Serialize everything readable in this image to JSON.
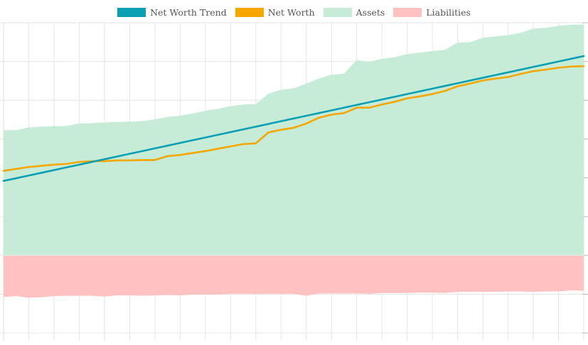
{
  "chart_data": {
    "type": "area",
    "title": "",
    "xlabel": "",
    "ylabel": "",
    "legend_position": "top-center",
    "grid": true,
    "x": [
      0,
      1,
      2,
      3,
      4,
      5,
      6,
      7,
      8,
      9,
      10,
      11,
      12,
      13,
      14,
      15,
      16,
      17,
      18,
      19,
      20,
      21,
      22,
      23,
      24,
      25,
      26,
      27,
      28,
      29,
      30,
      31,
      32,
      33,
      34,
      35,
      36,
      37,
      38,
      39,
      40,
      41,
      42,
      43,
      44,
      45,
      46
    ],
    "ylim": [
      -22,
      60
    ],
    "series": [
      {
        "name": "Assets",
        "kind": "area",
        "color": "#c6ecd7",
        "values": [
          32.3,
          32.3,
          33.0,
          33.2,
          33.3,
          33.4,
          34.0,
          34.1,
          34.3,
          34.4,
          34.5,
          34.6,
          35.1,
          35.7,
          36.0,
          36.6,
          37.3,
          37.8,
          38.5,
          38.9,
          39.0,
          41.7,
          42.7,
          43.1,
          44.3,
          45.6,
          46.6,
          46.9,
          50.4,
          49.9,
          50.7,
          51.1,
          51.9,
          52.3,
          52.7,
          53.0,
          54.9,
          55.0,
          56.1,
          56.5,
          56.8,
          57.4,
          58.5,
          58.7,
          59.2,
          59.5,
          59.5
        ]
      },
      {
        "name": "Liabilities",
        "kind": "area",
        "color": "#ffc2c1",
        "values": [
          -10.7,
          -10.5,
          -10.9,
          -10.8,
          -10.5,
          -10.4,
          -10.4,
          -10.4,
          -10.6,
          -10.3,
          -10.3,
          -10.4,
          -10.3,
          -10.2,
          -10.3,
          -10.1,
          -10.1,
          -10.1,
          -9.9,
          -9.9,
          -9.9,
          -9.9,
          -9.9,
          -9.9,
          -10.4,
          -9.8,
          -9.8,
          -9.8,
          -9.8,
          -9.9,
          -9.7,
          -9.7,
          -9.7,
          -9.6,
          -9.6,
          -9.7,
          -9.4,
          -9.4,
          -9.4,
          -9.4,
          -9.3,
          -9.3,
          -9.4,
          -9.3,
          -9.3,
          -9.0,
          -9.1
        ]
      },
      {
        "name": "Net Worth",
        "kind": "line",
        "color": "#f7a600",
        "values": [
          21.8,
          22.3,
          22.8,
          23.1,
          23.4,
          23.6,
          24.1,
          24.3,
          24.3,
          24.5,
          24.5,
          24.6,
          24.6,
          25.6,
          25.9,
          26.4,
          26.9,
          27.5,
          28.1,
          28.7,
          28.9,
          31.7,
          32.4,
          32.9,
          34.0,
          35.5,
          36.3,
          36.7,
          38.1,
          38.1,
          38.9,
          39.6,
          40.5,
          41.0,
          41.6,
          42.4,
          43.6,
          44.3,
          45.1,
          45.6,
          46.0,
          46.8,
          47.5,
          47.9,
          48.4,
          48.7,
          48.8
        ]
      },
      {
        "name": "Net Worth Trend",
        "kind": "line",
        "color": "#0a9fb3",
        "values": [
          19.2,
          19.9,
          20.6,
          21.3,
          22.0,
          22.7,
          23.4,
          24.1,
          24.8,
          25.5,
          26.2,
          26.9,
          27.6,
          28.3,
          29.0,
          29.7,
          30.4,
          31.1,
          31.8,
          32.5,
          33.2,
          33.9,
          34.6,
          35.3,
          36.0,
          36.7,
          37.4,
          38.1,
          38.8,
          39.5,
          40.2,
          40.9,
          41.6,
          42.3,
          43.0,
          43.7,
          44.4,
          45.1,
          45.8,
          46.5,
          47.2,
          47.9,
          48.6,
          49.3,
          50.0,
          50.7,
          51.4
        ]
      }
    ],
    "legend": [
      {
        "label": "Net Worth Trend",
        "color": "#0a9fb3"
      },
      {
        "label": "Net Worth",
        "color": "#f7a600"
      },
      {
        "label": "Assets",
        "color": "#c6ecd7"
      },
      {
        "label": "Liabilities",
        "color": "#ffc2c1"
      }
    ]
  }
}
